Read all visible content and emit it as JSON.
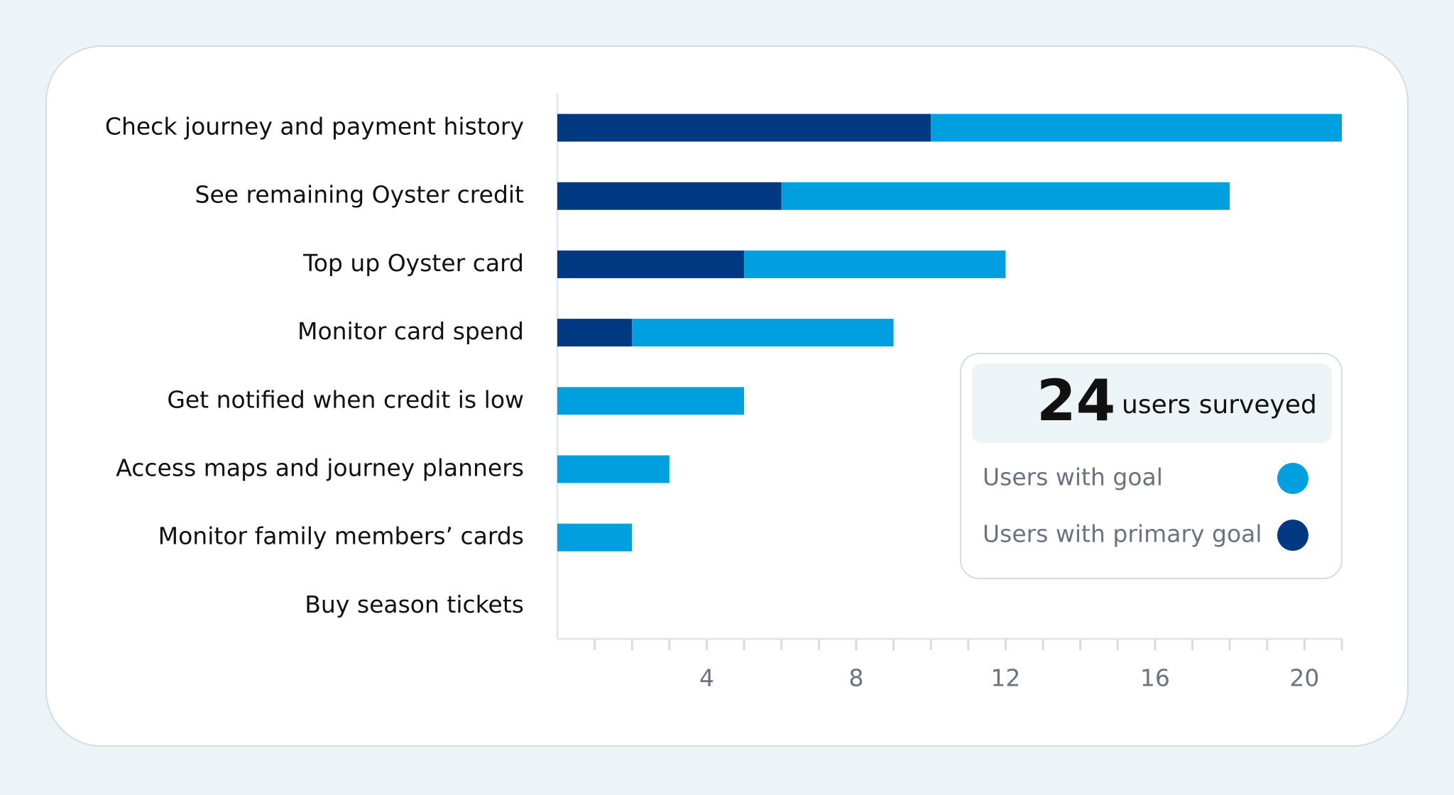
{
  "chart_data": {
    "type": "stacked_barh",
    "categories": [
      "Check journey and payment history",
      "See remaining Oyster credit",
      "Top up Oyster card",
      "Monitor card spend",
      "Get notified when credit is low",
      "Access maps and journey planners",
      "Monitor family members’ cards",
      "Buy season tickets"
    ],
    "series": [
      {
        "name": "Users with primary goal",
        "color": "#003882",
        "values": [
          10,
          6,
          5,
          2,
          0,
          0,
          0,
          0
        ]
      },
      {
        "name": "Users with goal",
        "color": "#009fe0",
        "values": [
          11,
          12,
          7,
          7,
          5,
          3,
          2,
          0
        ]
      }
    ],
    "legend_order": [
      1,
      0
    ],
    "xlim": [
      0,
      21
    ],
    "xticks": [
      4,
      8,
      12,
      16,
      20
    ],
    "minor_xticks": [
      1,
      2,
      3,
      4,
      5,
      6,
      7,
      8,
      9,
      10,
      11,
      12,
      13,
      14,
      15,
      16,
      17,
      18,
      19,
      20,
      21
    ],
    "survey_count": 24,
    "survey_label": "users surveyed"
  }
}
